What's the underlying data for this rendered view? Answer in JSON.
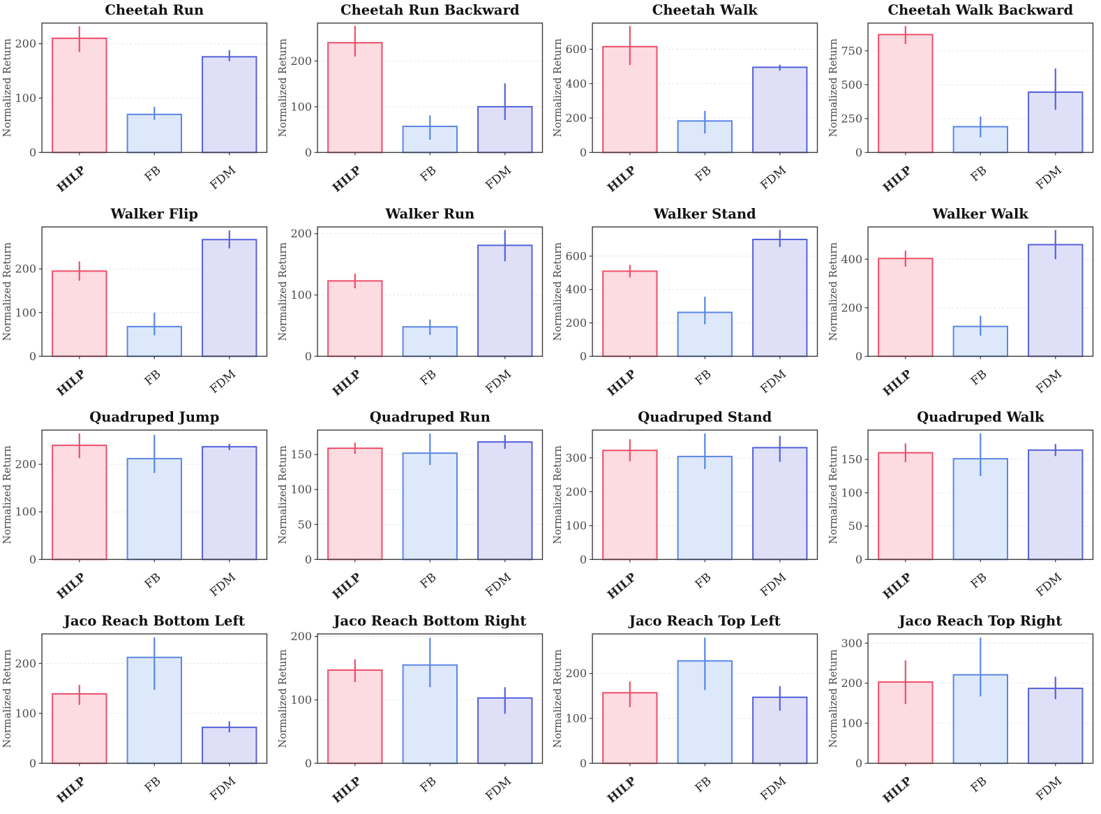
{
  "figure": {
    "ylabel": "Normalized Return",
    "methods": [
      {
        "name": "HILP",
        "fill": "#fcdbe1",
        "edge": "#ee4f6a",
        "bold": true
      },
      {
        "name": "FB",
        "fill": "#dde8fa",
        "edge": "#5b87e5",
        "bold": false
      },
      {
        "name": "FDM",
        "fill": "#dfe0f7",
        "edge": "#5562da",
        "bold": false
      }
    ],
    "grid_color": "#e2e2e2",
    "spine_color": "#3c3c3c",
    "tick_text_color": "#4a4a4a",
    "title_color": "#111111"
  },
  "chart_data": [
    {
      "type": "bar",
      "title": "Cheetah Run",
      "categories": [
        "HILP",
        "FB",
        "FDM"
      ],
      "values": [
        210,
        70,
        176
      ],
      "err_low": [
        185,
        60,
        168
      ],
      "err_high": [
        232,
        84,
        188
      ],
      "xlabel": "",
      "ylabel": "Normalized Return",
      "yticks": [
        0,
        100,
        200
      ],
      "ylim": [
        0,
        238
      ],
      "grid": true,
      "legend": "none"
    },
    {
      "type": "bar",
      "title": "Cheetah Run Backward",
      "categories": [
        "HILP",
        "FB",
        "FDM"
      ],
      "values": [
        240,
        57,
        100
      ],
      "err_low": [
        210,
        28,
        71
      ],
      "err_high": [
        277,
        81,
        151
      ],
      "xlabel": "",
      "ylabel": "Normalized Return",
      "yticks": [
        0,
        100,
        200
      ],
      "ylim": [
        0,
        283
      ],
      "grid": true,
      "legend": "none"
    },
    {
      "type": "bar",
      "title": "Cheetah Walk",
      "categories": [
        "HILP",
        "FB",
        "FDM"
      ],
      "values": [
        615,
        183,
        495
      ],
      "err_low": [
        508,
        110,
        475
      ],
      "err_high": [
        735,
        242,
        510
      ],
      "xlabel": "",
      "ylabel": "Normalized Return",
      "yticks": [
        0,
        200,
        400,
        600
      ],
      "ylim": [
        0,
        752
      ],
      "grid": true,
      "legend": "none"
    },
    {
      "type": "bar",
      "title": "Cheetah Walk Backward",
      "categories": [
        "HILP",
        "FB",
        "FDM"
      ],
      "values": [
        870,
        190,
        445
      ],
      "err_low": [
        800,
        112,
        315
      ],
      "err_high": [
        933,
        265,
        620
      ],
      "xlabel": "",
      "ylabel": "Normalized Return",
      "yticks": [
        0,
        250,
        500,
        750
      ],
      "ylim": [
        0,
        955
      ],
      "grid": true,
      "legend": "none"
    },
    {
      "type": "bar",
      "title": "Walker Flip",
      "categories": [
        "HILP",
        "FB",
        "FDM"
      ],
      "values": [
        195,
        68,
        267
      ],
      "err_low": [
        173,
        48,
        247
      ],
      "err_high": [
        217,
        100,
        288
      ],
      "xlabel": "",
      "ylabel": "Normalized Return",
      "yticks": [
        0,
        100,
        200
      ],
      "ylim": [
        0,
        296
      ],
      "grid": true,
      "legend": "none"
    },
    {
      "type": "bar",
      "title": "Walker Run",
      "categories": [
        "HILP",
        "FB",
        "FDM"
      ],
      "values": [
        123,
        48,
        181
      ],
      "err_low": [
        111,
        35,
        155
      ],
      "err_high": [
        135,
        60,
        206
      ],
      "xlabel": "",
      "ylabel": "Normalized Return",
      "yticks": [
        0,
        100,
        200
      ],
      "ylim": [
        0,
        211
      ],
      "grid": true,
      "legend": "none"
    },
    {
      "type": "bar",
      "title": "Walker Stand",
      "categories": [
        "HILP",
        "FB",
        "FDM"
      ],
      "values": [
        510,
        263,
        700
      ],
      "err_low": [
        472,
        192,
        655
      ],
      "err_high": [
        548,
        357,
        757
      ],
      "xlabel": "",
      "ylabel": "Normalized Return",
      "yticks": [
        0,
        200,
        400,
        600
      ],
      "ylim": [
        0,
        775
      ],
      "grid": true,
      "legend": "none"
    },
    {
      "type": "bar",
      "title": "Walker Walk",
      "categories": [
        "HILP",
        "FB",
        "FDM"
      ],
      "values": [
        403,
        123,
        460
      ],
      "err_low": [
        370,
        85,
        400
      ],
      "err_high": [
        435,
        167,
        520
      ],
      "xlabel": "",
      "ylabel": "Normalized Return",
      "yticks": [
        0,
        200,
        400
      ],
      "ylim": [
        0,
        533
      ],
      "grid": true,
      "legend": "none"
    },
    {
      "type": "bar",
      "title": "Quadruped Jump",
      "categories": [
        "HILP",
        "FB",
        "FDM"
      ],
      "values": [
        240,
        212,
        237
      ],
      "err_low": [
        213,
        182,
        230
      ],
      "err_high": [
        265,
        262,
        243
      ],
      "xlabel": "",
      "ylabel": "Normalized Return",
      "yticks": [
        0,
        100,
        200
      ],
      "ylim": [
        0,
        272
      ],
      "grid": true,
      "legend": "none"
    },
    {
      "type": "bar",
      "title": "Quadruped Run",
      "categories": [
        "HILP",
        "FB",
        "FDM"
      ],
      "values": [
        159,
        152,
        168
      ],
      "err_low": [
        151,
        135,
        158
      ],
      "err_high": [
        167,
        180,
        178
      ],
      "xlabel": "",
      "ylabel": "Normalized Return",
      "yticks": [
        0,
        50,
        100,
        150
      ],
      "ylim": [
        0,
        185
      ],
      "grid": true,
      "legend": "none"
    },
    {
      "type": "bar",
      "title": "Quadruped Stand",
      "categories": [
        "HILP",
        "FB",
        "FDM"
      ],
      "values": [
        322,
        304,
        330
      ],
      "err_low": [
        290,
        267,
        288
      ],
      "err_high": [
        355,
        372,
        365
      ],
      "xlabel": "",
      "ylabel": "Normalized Return",
      "yticks": [
        0,
        100,
        200,
        300
      ],
      "ylim": [
        0,
        382
      ],
      "grid": true,
      "legend": "none"
    },
    {
      "type": "bar",
      "title": "Quadruped Walk",
      "categories": [
        "HILP",
        "FB",
        "FDM"
      ],
      "values": [
        160,
        151,
        164
      ],
      "err_low": [
        146,
        125,
        155
      ],
      "err_high": [
        174,
        189,
        173
      ],
      "xlabel": "",
      "ylabel": "Normalized Return",
      "yticks": [
        0,
        50,
        100,
        150
      ],
      "ylim": [
        0,
        194
      ],
      "grid": true,
      "legend": "none"
    },
    {
      "type": "bar",
      "title": "Jaco Reach Bottom Left",
      "categories": [
        "HILP",
        "FB",
        "FDM"
      ],
      "values": [
        139,
        212,
        72
      ],
      "err_low": [
        117,
        147,
        62
      ],
      "err_high": [
        157,
        252,
        84
      ],
      "xlabel": "",
      "ylabel": "Normalized Return",
      "yticks": [
        0,
        100,
        200
      ],
      "ylim": [
        0,
        259
      ],
      "grid": true,
      "legend": "none"
    },
    {
      "type": "bar",
      "title": "Jaco Reach Bottom Right",
      "categories": [
        "HILP",
        "FB",
        "FDM"
      ],
      "values": [
        147,
        155,
        103
      ],
      "err_low": [
        128,
        120,
        78
      ],
      "err_high": [
        164,
        198,
        120
      ],
      "xlabel": "",
      "ylabel": "Normalized Return",
      "yticks": [
        0,
        100,
        200
      ],
      "ylim": [
        0,
        204
      ],
      "grid": true,
      "legend": "none"
    },
    {
      "type": "bar",
      "title": "Jaco Reach Top Left",
      "categories": [
        "HILP",
        "FB",
        "FDM"
      ],
      "values": [
        157,
        228,
        147
      ],
      "err_low": [
        125,
        163,
        117
      ],
      "err_high": [
        182,
        280,
        172
      ],
      "xlabel": "",
      "ylabel": "Normalized Return",
      "yticks": [
        0,
        100,
        200
      ],
      "ylim": [
        0,
        288
      ],
      "grid": true,
      "legend": "none"
    },
    {
      "type": "bar",
      "title": "Jaco Reach Top Right",
      "categories": [
        "HILP",
        "FB",
        "FDM"
      ],
      "values": [
        203,
        221,
        187
      ],
      "err_low": [
        148,
        167,
        160
      ],
      "err_high": [
        257,
        314,
        216
      ],
      "xlabel": "",
      "ylabel": "Normalized Return",
      "yticks": [
        0,
        100,
        200,
        300
      ],
      "ylim": [
        0,
        323
      ],
      "grid": true,
      "legend": "none"
    }
  ]
}
